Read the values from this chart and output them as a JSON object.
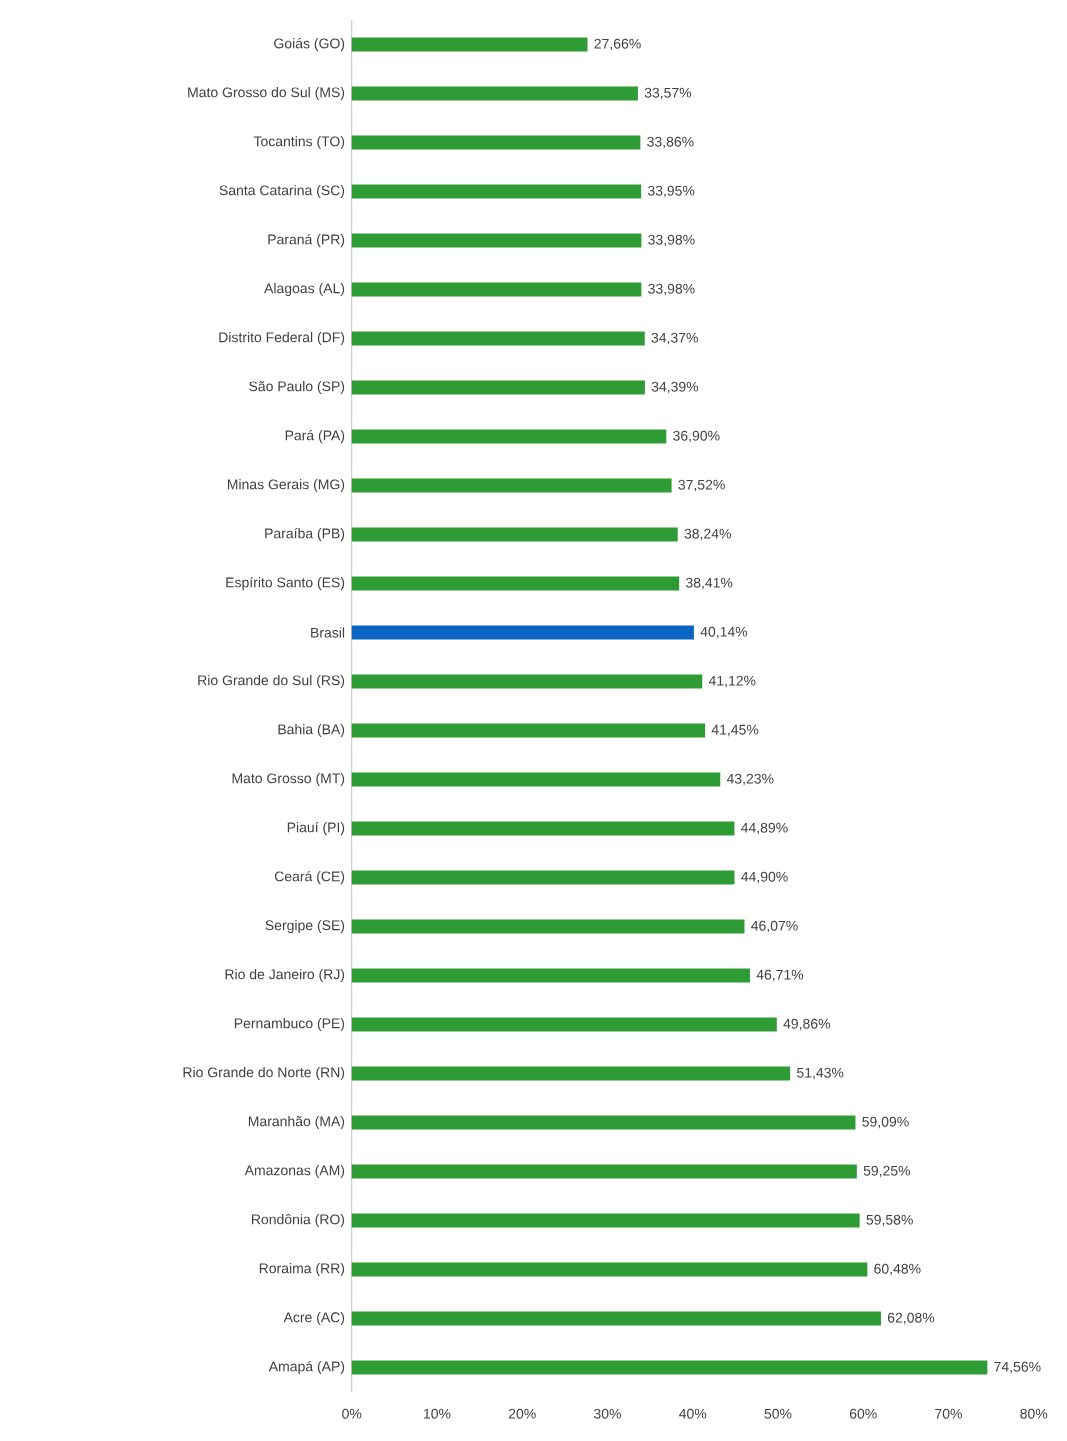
{
  "chart_data": {
    "type": "bar",
    "orientation": "horizontal",
    "categories": [
      "Goiás (GO)",
      "Mato Grosso do Sul (MS)",
      "Tocantins (TO)",
      "Santa Catarina (SC)",
      "Paraná (PR)",
      "Alagoas (AL)",
      "Distrito Federal (DF)",
      "São Paulo (SP)",
      "Pará (PA)",
      "Minas Gerais (MG)",
      "Paraíba (PB)",
      "Espírito Santo (ES)",
      "Brasil",
      "Rio Grande do Sul (RS)",
      "Bahia (BA)",
      "Mato Grosso (MT)",
      "Piauí (PI)",
      "Ceará (CE)",
      "Sergipe (SE)",
      "Rio de Janeiro (RJ)",
      "Pernambuco (PE)",
      "Rio Grande do Norte (RN)",
      "Maranhão (MA)",
      "Amazonas (AM)",
      "Rondônia (RO)",
      "Roraima (RR)",
      "Acre (AC)",
      "Amapá (AP)"
    ],
    "values": [
      27.66,
      33.57,
      33.86,
      33.95,
      33.98,
      33.98,
      34.37,
      34.39,
      36.9,
      37.52,
      38.24,
      38.41,
      40.14,
      41.12,
      41.45,
      43.23,
      44.89,
      44.9,
      46.07,
      46.71,
      49.86,
      51.43,
      59.09,
      59.25,
      59.58,
      60.48,
      62.08,
      74.56
    ],
    "value_labels": [
      "27,66%",
      "33,57%",
      "33,86%",
      "33,95%",
      "33,98%",
      "33,98%",
      "34,37%",
      "34,39%",
      "36,90%",
      "37,52%",
      "38,24%",
      "38,41%",
      "40,14%",
      "41,12%",
      "41,45%",
      "43,23%",
      "44,89%",
      "44,90%",
      "46,07%",
      "46,71%",
      "49,86%",
      "51,43%",
      "59,09%",
      "59,25%",
      "59,58%",
      "60,48%",
      "62,08%",
      "74,56%"
    ],
    "colors": [
      "#2e9b35",
      "#2e9b35",
      "#2e9b35",
      "#2e9b35",
      "#2e9b35",
      "#2e9b35",
      "#2e9b35",
      "#2e9b35",
      "#2e9b35",
      "#2e9b35",
      "#2e9b35",
      "#2e9b35",
      "#0a66c2",
      "#2e9b35",
      "#2e9b35",
      "#2e9b35",
      "#2e9b35",
      "#2e9b35",
      "#2e9b35",
      "#2e9b35",
      "#2e9b35",
      "#2e9b35",
      "#2e9b35",
      "#2e9b35",
      "#2e9b35",
      "#2e9b35",
      "#2e9b35",
      "#2e9b35"
    ],
    "xlim": [
      0,
      80
    ],
    "xticks": [
      {
        "value": 0,
        "label": "0%"
      },
      {
        "value": 10,
        "label": "10%"
      },
      {
        "value": 20,
        "label": "20%"
      },
      {
        "value": 30,
        "label": "30%"
      },
      {
        "value": 40,
        "label": "40%"
      },
      {
        "value": 50,
        "label": "50%"
      },
      {
        "value": 60,
        "label": "60%"
      },
      {
        "value": 70,
        "label": "70%"
      },
      {
        "value": 80,
        "label": "80%"
      }
    ]
  }
}
